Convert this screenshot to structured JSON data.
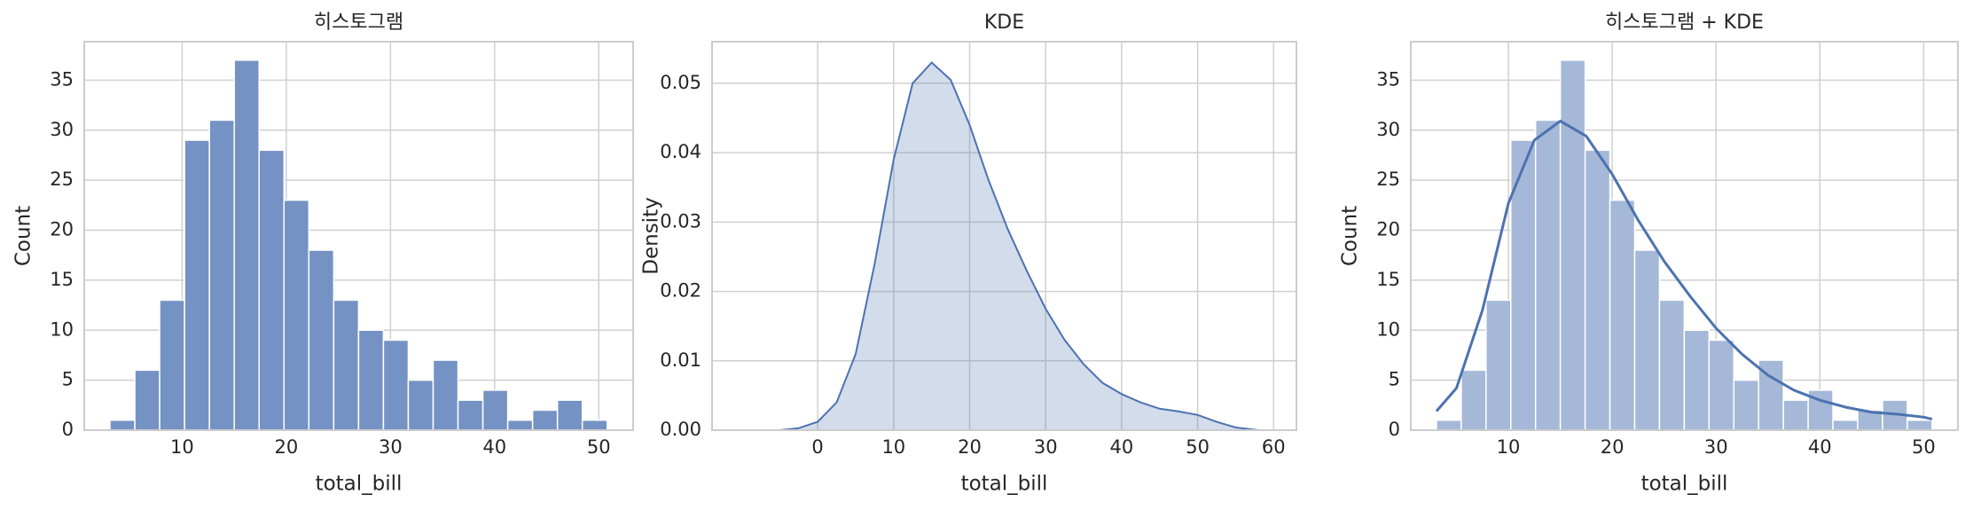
{
  "chart_data": [
    {
      "type": "histogram",
      "title": "히스토그램",
      "x_label": "total_bill",
      "y_label": "Count",
      "bins": [
        3.07,
        5.457,
        7.844,
        10.231,
        12.618,
        15.005,
        17.392,
        19.779,
        22.166,
        24.553,
        26.94,
        29.327,
        31.714,
        34.101,
        36.488,
        38.875,
        41.262,
        43.649,
        46.036,
        48.423,
        50.81
      ],
      "counts": [
        1,
        6,
        13,
        29,
        31,
        37,
        28,
        23,
        18,
        13,
        10,
        9,
        5,
        7,
        3,
        4,
        1,
        2,
        3,
        1
      ],
      "color": "#7592c4",
      "xlim": [
        0.6,
        53.3
      ],
      "ylim": [
        0,
        38.85
      ],
      "xticks": [
        10,
        20,
        30,
        40,
        50
      ],
      "yticks": [
        0,
        5,
        10,
        15,
        20,
        25,
        30,
        35
      ],
      "grid": true
    },
    {
      "type": "kde",
      "title": "KDE",
      "x_label": "total_bill",
      "y_label": "Density",
      "x": [
        -5,
        -2.5,
        0,
        2.5,
        5,
        7.5,
        10,
        12.5,
        15,
        17.5,
        20,
        22.5,
        25,
        27.5,
        30,
        32.5,
        35,
        37.5,
        40,
        42.5,
        45,
        47.5,
        50,
        52.5,
        55,
        58
      ],
      "values": [
        0,
        0.0003,
        0.0012,
        0.004,
        0.011,
        0.024,
        0.039,
        0.05,
        0.053,
        0.0505,
        0.044,
        0.036,
        0.029,
        0.023,
        0.0175,
        0.013,
        0.0095,
        0.0068,
        0.0052,
        0.004,
        0.0031,
        0.0027,
        0.0022,
        0.0012,
        0.0004,
        0
      ],
      "color": "#4c72b0",
      "xlim": [
        -13.9,
        63
      ],
      "ylim": [
        0,
        0.056
      ],
      "xticks": [
        0,
        10,
        20,
        30,
        40,
        50,
        60
      ],
      "yticks": [
        {
          "value": 0,
          "label": "0.00"
        },
        0.01,
        0.02,
        0.03,
        0.04,
        0.05
      ],
      "grid": true
    },
    {
      "type": "histogram_kde",
      "title": "히스토그램 + KDE",
      "x_label": "total_bill",
      "y_label": "Count",
      "bins": [
        3.07,
        5.457,
        7.844,
        10.231,
        12.618,
        15.005,
        17.392,
        19.779,
        22.166,
        24.553,
        26.94,
        29.327,
        31.714,
        34.101,
        36.488,
        38.875,
        41.262,
        43.649,
        46.036,
        48.423,
        50.81
      ],
      "counts": [
        1,
        6,
        13,
        29,
        31,
        37,
        28,
        23,
        18,
        13,
        10,
        9,
        5,
        7,
        3,
        4,
        1,
        2,
        3,
        1
      ],
      "color": "#a5b8d7",
      "line_color": "#4c72b0",
      "kde_x": [
        3.07,
        5,
        7.5,
        10,
        12.5,
        15,
        17.5,
        20,
        22.5,
        25,
        27.5,
        30,
        32.5,
        35,
        37.5,
        40,
        42.5,
        45,
        47.5,
        50,
        50.81
      ],
      "kde_values": [
        1.9,
        4.2,
        12,
        22.7,
        29,
        30.9,
        29.4,
        25.6,
        21,
        16.9,
        13.4,
        10.2,
        7.6,
        5.5,
        4,
        3,
        2.3,
        1.8,
        1.6,
        1.3,
        1.1
      ],
      "xlim": [
        0.6,
        53.3
      ],
      "ylim": [
        0,
        38.85
      ],
      "xticks": [
        10,
        20,
        30,
        40,
        50
      ],
      "yticks": [
        0,
        5,
        10,
        15,
        20,
        25,
        30,
        35
      ],
      "grid": true
    }
  ]
}
